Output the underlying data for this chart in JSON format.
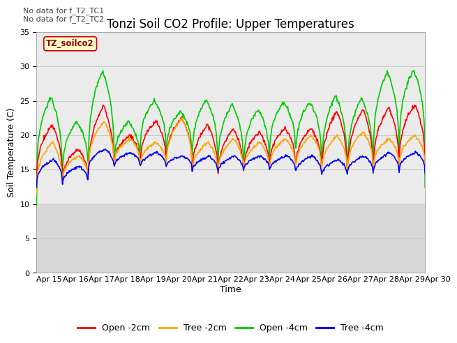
{
  "title": "Tonzi Soil CO2 Profile: Upper Temperatures",
  "ylabel": "Soil Temperature (C)",
  "xlabel": "Time",
  "ylim": [
    0,
    35
  ],
  "x_tick_labels": [
    "Apr 15",
    "Apr 16",
    "Apr 17",
    "Apr 18",
    "Apr 19",
    "Apr 20",
    "Apr 21",
    "Apr 22",
    "Apr 23",
    "Apr 24",
    "Apr 25",
    "Apr 26",
    "Apr 27",
    "Apr 28",
    "Apr 29",
    "Apr 30"
  ],
  "legend_labels": [
    "Open -2cm",
    "Tree -2cm",
    "Open -4cm",
    "Tree -4cm"
  ],
  "legend_colors": [
    "#ff0000",
    "#ffa500",
    "#00cc00",
    "#0000ff"
  ],
  "note_lines": [
    "No data for f_T2_TC1",
    "No data for f_T2_TC2"
  ],
  "box_label": "TZ_soilco2",
  "box_bg": "#ffffcc",
  "box_border": "#cc0000",
  "box_text_color": "#990000",
  "bg_main": "#ebebeb",
  "bg_lower": "#d8d8d8",
  "grid_color": "#cccccc",
  "title_fontsize": 12,
  "axis_label_fontsize": 9,
  "tick_fontsize": 8,
  "note_fontsize": 8,
  "legend_fontsize": 9
}
